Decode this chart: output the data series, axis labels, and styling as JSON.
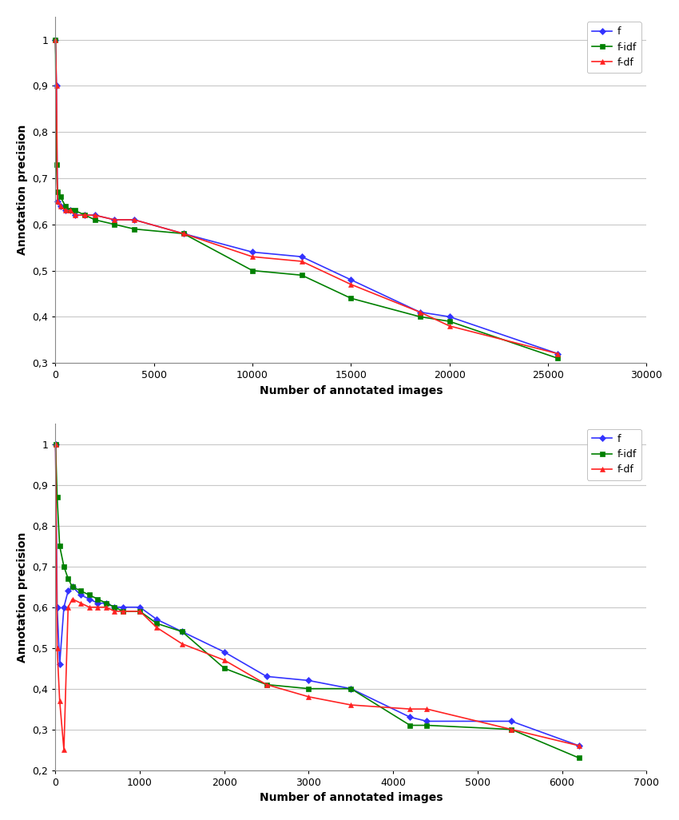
{
  "top_chart": {
    "xlabel": "Number of annotated images",
    "ylabel": "Annotation precision",
    "xlim": [
      0,
      30000
    ],
    "ylim": [
      0.3,
      1.05
    ],
    "xticks": [
      0,
      5000,
      10000,
      15000,
      20000,
      25000,
      30000
    ],
    "yticks": [
      0.3,
      0.4,
      0.5,
      0.6,
      0.7,
      0.8,
      0.9,
      1.0
    ],
    "series": {
      "f": {
        "color": "#3333FF",
        "marker": "D",
        "markersize": 4,
        "x": [
          1,
          50,
          100,
          250,
          500,
          750,
          1000,
          1500,
          2000,
          3000,
          4000,
          6500,
          10000,
          12500,
          15000,
          18500,
          20000,
          25500
        ],
        "y": [
          1.0,
          0.9,
          0.65,
          0.64,
          0.63,
          0.63,
          0.62,
          0.62,
          0.62,
          0.61,
          0.61,
          0.58,
          0.54,
          0.53,
          0.48,
          0.41,
          0.4,
          0.32
        ]
      },
      "f-idf": {
        "color": "#008000",
        "marker": "s",
        "markersize": 4,
        "x": [
          1,
          50,
          100,
          250,
          500,
          750,
          1000,
          1500,
          2000,
          3000,
          4000,
          6500,
          10000,
          12500,
          15000,
          18500,
          20000,
          25500
        ],
        "y": [
          1.0,
          0.73,
          0.67,
          0.66,
          0.64,
          0.63,
          0.63,
          0.62,
          0.61,
          0.6,
          0.59,
          0.58,
          0.5,
          0.49,
          0.44,
          0.4,
          0.39,
          0.31
        ]
      },
      "f-df": {
        "color": "#FF2222",
        "marker": "^",
        "markersize": 5,
        "x": [
          1,
          50,
          100,
          250,
          500,
          750,
          1000,
          1500,
          2000,
          3000,
          4000,
          6500,
          10000,
          12500,
          15000,
          18500,
          20000,
          25500
        ],
        "y": [
          1.0,
          0.9,
          0.65,
          0.64,
          0.63,
          0.63,
          0.62,
          0.62,
          0.62,
          0.61,
          0.61,
          0.58,
          0.53,
          0.52,
          0.47,
          0.41,
          0.38,
          0.32
        ]
      }
    }
  },
  "bottom_chart": {
    "xlabel": "Number of annotated images",
    "ylabel": "Annotation precision",
    "xlim": [
      0,
      7000
    ],
    "ylim": [
      0.2,
      1.05
    ],
    "xticks": [
      0,
      1000,
      2000,
      3000,
      4000,
      5000,
      6000,
      7000
    ],
    "yticks": [
      0.2,
      0.3,
      0.4,
      0.5,
      0.6,
      0.7,
      0.8,
      0.9,
      1.0
    ],
    "series": {
      "f": {
        "color": "#3333FF",
        "marker": "D",
        "markersize": 4,
        "x": [
          1,
          20,
          50,
          100,
          150,
          200,
          300,
          400,
          500,
          600,
          700,
          800,
          1000,
          1200,
          1500,
          2000,
          2500,
          3000,
          3500,
          4200,
          4400,
          5400,
          6200
        ],
        "y": [
          1.0,
          0.6,
          0.46,
          0.6,
          0.64,
          0.65,
          0.63,
          0.62,
          0.61,
          0.61,
          0.6,
          0.6,
          0.6,
          0.57,
          0.54,
          0.49,
          0.43,
          0.42,
          0.4,
          0.33,
          0.32,
          0.32,
          0.26
        ]
      },
      "f-idf": {
        "color": "#008000",
        "marker": "s",
        "markersize": 4,
        "x": [
          1,
          20,
          50,
          100,
          150,
          200,
          300,
          400,
          500,
          600,
          700,
          800,
          1000,
          1200,
          1500,
          2000,
          2500,
          3000,
          3500,
          4200,
          4400,
          5400,
          6200
        ],
        "y": [
          1.0,
          0.87,
          0.75,
          0.7,
          0.67,
          0.65,
          0.64,
          0.63,
          0.62,
          0.61,
          0.6,
          0.59,
          0.59,
          0.56,
          0.54,
          0.45,
          0.41,
          0.4,
          0.4,
          0.31,
          0.31,
          0.3,
          0.23
        ]
      },
      "f-df": {
        "color": "#FF2222",
        "marker": "^",
        "markersize": 5,
        "x": [
          1,
          20,
          50,
          100,
          150,
          200,
          300,
          400,
          500,
          600,
          700,
          800,
          1000,
          1200,
          1500,
          2000,
          2500,
          3000,
          3500,
          4200,
          4400,
          5400,
          6200
        ],
        "y": [
          1.0,
          0.5,
          0.37,
          0.25,
          0.6,
          0.62,
          0.61,
          0.6,
          0.6,
          0.6,
          0.59,
          0.59,
          0.59,
          0.55,
          0.51,
          0.47,
          0.41,
          0.38,
          0.36,
          0.35,
          0.35,
          0.3,
          0.26
        ]
      }
    }
  },
  "background_color": "#FFFFFF",
  "grid_color": "#C8C8C8",
  "tick_label_fontsize": 9,
  "axis_label_fontsize": 10,
  "legend_fontsize": 9,
  "line_width": 1.2
}
